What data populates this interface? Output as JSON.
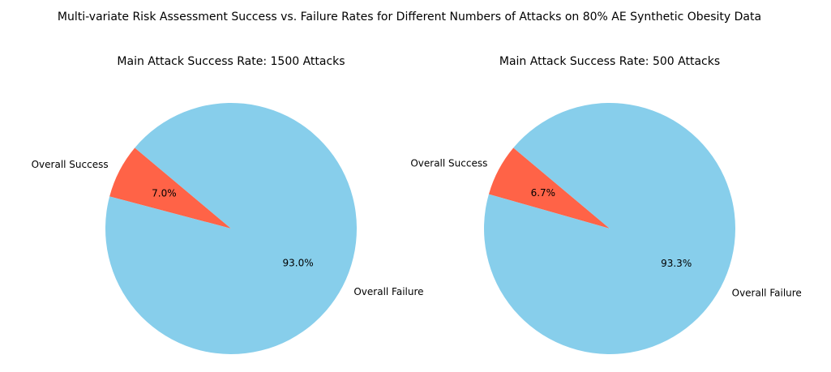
{
  "figure": {
    "suptitle": "Multi-variate Risk Assessment Success vs. Failure Rates for Different Numbers of Attacks on 80% AE Synthetic Obesity Data"
  },
  "chart_data": [
    {
      "type": "pie",
      "title": "Main Attack Success Rate: 1500 Attacks",
      "labels": [
        "Overall Success",
        "Overall Failure"
      ],
      "values": [
        7.0,
        93.0
      ],
      "value_labels": [
        "7.0%",
        "93.0%"
      ],
      "colors": [
        "#ff6347",
        "#87ceeb"
      ],
      "start_angle_deg": 140,
      "direction": "counterclockwise"
    },
    {
      "type": "pie",
      "title": "Main Attack Success Rate: 500 Attacks",
      "labels": [
        "Overall Success",
        "Overall Failure"
      ],
      "values": [
        6.7,
        93.3
      ],
      "value_labels": [
        "6.7%",
        "93.3%"
      ],
      "colors": [
        "#ff6347",
        "#87ceeb"
      ],
      "start_angle_deg": 140,
      "direction": "counterclockwise"
    }
  ]
}
